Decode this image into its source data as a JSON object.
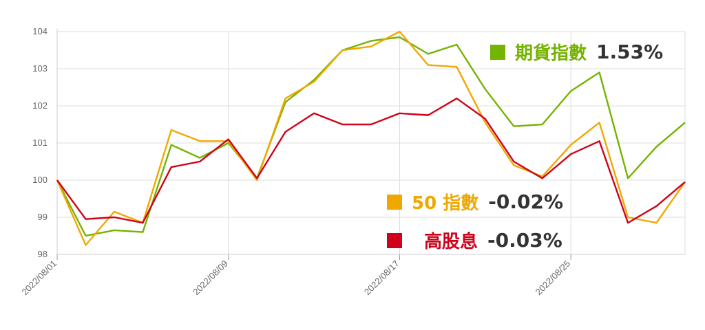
{
  "chart_data": {
    "type": "line",
    "y_ticks": [
      "98",
      "99",
      "100",
      "101",
      "102",
      "103",
      "104"
    ],
    "ylim": [
      98,
      104
    ],
    "x_tick_labels": [
      "2022/08/01",
      "2022/08/09",
      "2022/08/17",
      "2022/08/25"
    ],
    "x_tick_indices": [
      0,
      6,
      12,
      18
    ],
    "grid": true,
    "series": [
      {
        "name": "50 指數",
        "change": "-0.02%",
        "color": "#f0a800",
        "values": [
          100.0,
          98.25,
          99.15,
          98.85,
          101.35,
          101.05,
          101.05,
          100.0,
          102.2,
          102.65,
          103.5,
          103.6,
          104.0,
          103.1,
          103.05,
          101.55,
          100.4,
          100.1,
          100.95,
          101.55,
          99.0,
          98.85,
          99.95
        ]
      },
      {
        "name": "期貨指數",
        "change": "1.53%",
        "color": "#74b300",
        "values": [
          100.0,
          98.5,
          98.65,
          98.6,
          100.95,
          100.6,
          101.0,
          100.05,
          102.1,
          102.7,
          103.5,
          103.75,
          103.85,
          103.4,
          103.65,
          102.45,
          101.45,
          101.5,
          102.4,
          102.9,
          100.05,
          100.9,
          101.55
        ]
      },
      {
        "name": "高股息",
        "change": "-0.03%",
        "color": "#d0021b",
        "values": [
          100.0,
          98.95,
          99.0,
          98.85,
          100.35,
          100.5,
          101.1,
          100.05,
          101.3,
          101.8,
          101.5,
          101.5,
          101.8,
          101.75,
          102.2,
          101.65,
          100.5,
          100.05,
          100.7,
          101.05,
          98.85,
          99.3,
          99.95
        ]
      }
    ]
  }
}
